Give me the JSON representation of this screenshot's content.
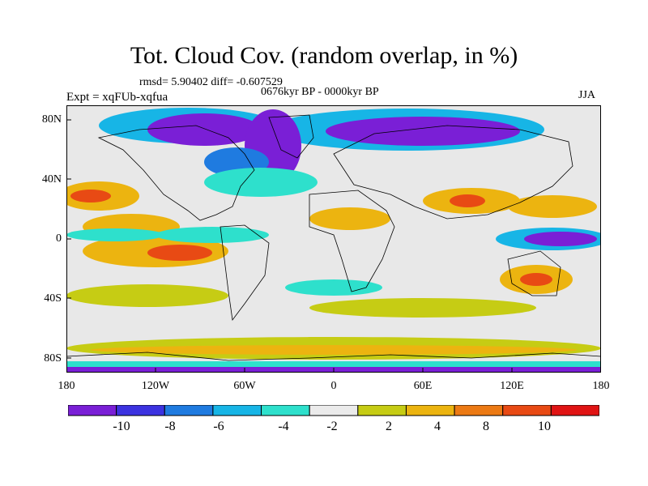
{
  "header": {
    "title": "Tot. Cloud Cov. (random overlap, in %)",
    "stats": "rmsd= 5.90402 diff= -0.607529",
    "period": "0676kyr BP - 0000kyr BP",
    "experiment": "Expt = xqFUb-xqfua",
    "season": "JJA"
  },
  "map": {
    "projection": "cylindrical equidistant",
    "lon_range": [
      -180,
      180
    ],
    "lat_range": [
      -90,
      90
    ],
    "lat_labels": [
      "80N",
      "40N",
      "0",
      "40S",
      "80S"
    ],
    "lon_labels": [
      "180",
      "120W",
      "60W",
      "0",
      "60E",
      "120E",
      "180"
    ],
    "background_color": "#e8e8e8",
    "coastline_color": "#000000"
  },
  "colorbar": {
    "labels": [
      "-10",
      "-8",
      "-6",
      "-4",
      "-2",
      "2",
      "4",
      "8",
      "10"
    ],
    "colors": [
      "#7a1fd6",
      "#3c32e0",
      "#1f7be0",
      "#17b5e6",
      "#2ee0cc",
      "#ebebeb",
      "#c6cc14",
      "#ecb410",
      "#ec7a14",
      "#e84a14",
      "#e01414"
    ]
  }
}
